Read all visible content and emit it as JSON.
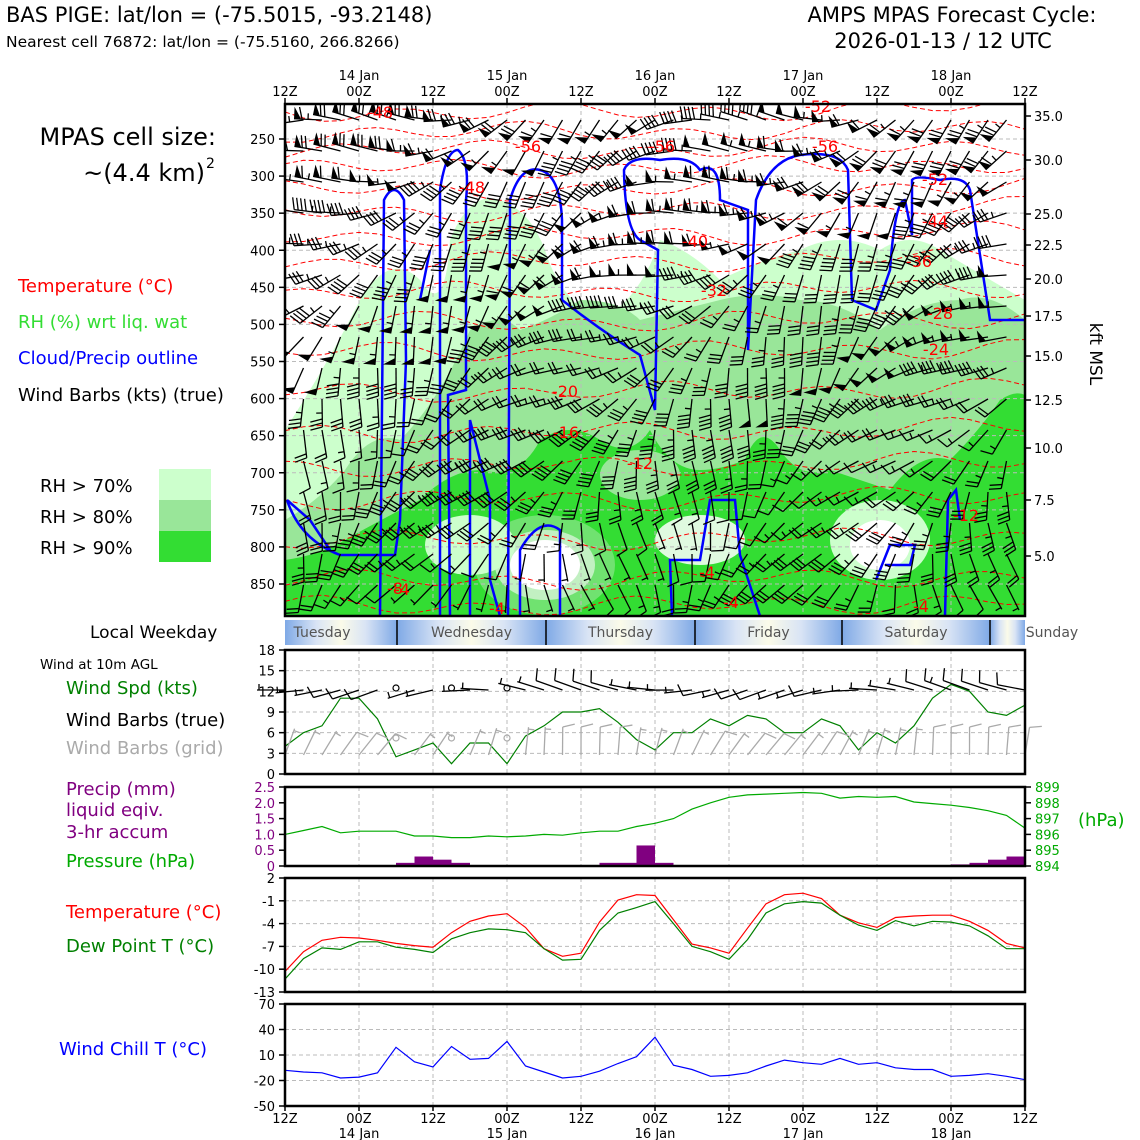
{
  "header": {
    "site_line": "BAS PIGE: lat/lon = (-75.5015, -93.2148)",
    "cell_line": "Nearest cell 76872: lat/lon = (-75.5160, 266.8266)",
    "cycle_line1": "AMPS MPAS Forecast Cycle:",
    "cycle_line2": "2026-01-13 / 12 UTC"
  },
  "colors": {
    "temperature": "#ff0000",
    "rh_legend": "#33dd33",
    "cloud_outline": "#0000ff",
    "wind": "#000000",
    "wind_grid": "#aaaaaa",
    "precip": "#800080",
    "pressure": "#00aa00",
    "dewpoint": "#008000",
    "windchill": "#0000ff",
    "rh70": "#ccffcc",
    "rh80": "#99e699",
    "rh90": "#33dd33"
  },
  "time_axis": {
    "hour_labels": [
      "12Z",
      "00Z",
      "12Z",
      "00Z",
      "12Z",
      "00Z",
      "12Z",
      "00Z",
      "12Z",
      "00Z",
      "12Z"
    ],
    "date_labels": [
      "14 Jan",
      "15 Jan",
      "16 Jan",
      "17 Jan",
      "18 Jan"
    ]
  },
  "upper_panel": {
    "cell_size_label": "MPAS cell size:",
    "cell_size_value": "~(4.4 km)",
    "cell_size_exp": "2",
    "legend": {
      "temperature": "Temperature (°C)",
      "rh": "RH (%) wrt liq. wat",
      "cloud": "Cloud/Precip outline",
      "wind": "Wind Barbs (kts) (true)"
    },
    "rh_levels": [
      "RH > 70%",
      "RH > 80%",
      "RH > 90%"
    ],
    "pressure_ticks": [
      "250",
      "300",
      "350",
      "400",
      "450",
      "500",
      "550",
      "600",
      "650",
      "700",
      "750",
      "800",
      "850"
    ],
    "height_ticks": [
      "35.0",
      "30.0",
      "25.0",
      "22.5",
      "20.0",
      "17.5",
      "15.0",
      "12.5",
      "10.0",
      "7.5",
      "5.0"
    ],
    "height_axis_label": "kft MSL",
    "temp_contour_labels": [
      "-48",
      "-52",
      "-56",
      "-56",
      "-56",
      "-52",
      "-48",
      "-44",
      "-40",
      "-36",
      "-32",
      "-28",
      "-24",
      "-20",
      "-16",
      "-12",
      "-12",
      "-8",
      "-8",
      "-4",
      "-4",
      "-4",
      "-4",
      "-4"
    ]
  },
  "weekday_bar": {
    "label": "Local Weekday",
    "days": [
      "Tuesday",
      "Wednesday",
      "Thursday",
      "Friday",
      "Saturday",
      "Sunday"
    ]
  },
  "wind_panel": {
    "title": "Wind at 10m AGL",
    "legend": {
      "speed": "Wind Spd (kts)",
      "barbs_true": "Wind Barbs (true)",
      "barbs_grid": "Wind Barbs (grid)"
    },
    "y_ticks": [
      "0",
      "3",
      "6",
      "9",
      "12",
      "15",
      "18"
    ]
  },
  "precip_panel": {
    "legend": {
      "precip1": "Precip (mm)",
      "precip2": "liquid eqiv.",
      "precip3": "3-hr accum",
      "pressure": "Pressure (hPa)"
    },
    "left_ticks": [
      "0",
      "0.5",
      "1.0",
      "1.5",
      "2.0",
      "2.5"
    ],
    "right_ticks": [
      "894",
      "895",
      "896",
      "897",
      "898",
      "899"
    ],
    "right_unit": "(hPa)"
  },
  "temp_panel": {
    "legend": {
      "temp": "Temperature (°C)",
      "dew": "Dew Point T (°C)"
    },
    "y_ticks": [
      "-13",
      "-10",
      "-7",
      "-4",
      "-1",
      "2"
    ]
  },
  "chill_panel": {
    "legend": "Wind Chill T (°C)",
    "y_ticks": [
      "-50",
      "-20",
      "10",
      "40",
      "70"
    ]
  },
  "chart_data": [
    {
      "type": "line",
      "title": "Wind at 10m AGL",
      "x": [
        "13/12Z",
        "13/15Z",
        "13/18Z",
        "13/21Z",
        "14/00Z",
        "14/03Z",
        "14/06Z",
        "14/09Z",
        "14/12Z",
        "14/15Z",
        "14/18Z",
        "14/21Z",
        "15/00Z",
        "15/03Z",
        "15/06Z",
        "15/09Z",
        "15/12Z",
        "15/15Z",
        "15/18Z",
        "15/21Z",
        "16/00Z",
        "16/03Z",
        "16/06Z",
        "16/09Z",
        "16/12Z",
        "16/15Z",
        "16/18Z",
        "16/21Z",
        "17/00Z",
        "17/03Z",
        "17/06Z",
        "17/09Z",
        "17/12Z",
        "17/15Z",
        "17/18Z",
        "17/21Z",
        "18/00Z",
        "18/03Z",
        "18/06Z",
        "18/09Z",
        "18/12Z"
      ],
      "series": [
        {
          "name": "Wind Spd (kts)",
          "values": [
            4,
            6,
            7,
            11,
            11,
            8,
            2.5,
            3.5,
            4.5,
            1.5,
            4.5,
            4.5,
            1.5,
            5.5,
            7,
            9,
            9,
            9.5,
            7.5,
            5,
            3.5,
            6,
            6,
            8,
            7,
            8.5,
            8,
            6,
            6,
            8,
            7,
            3.5,
            6,
            4.5,
            7,
            11,
            13,
            12,
            9,
            8.5,
            10
          ]
        }
      ],
      "ylim": [
        0,
        18
      ]
    },
    {
      "type": "bar",
      "title": "Precip (mm) liquid eqiv. 3-hr accum",
      "x": [
        "13/12Z",
        "13/15Z",
        "13/18Z",
        "13/21Z",
        "14/00Z",
        "14/03Z",
        "14/06Z",
        "14/09Z",
        "14/12Z",
        "14/15Z",
        "14/18Z",
        "14/21Z",
        "15/00Z",
        "15/03Z",
        "15/06Z",
        "15/09Z",
        "15/12Z",
        "15/15Z",
        "15/18Z",
        "15/21Z",
        "16/00Z",
        "16/03Z",
        "16/06Z",
        "16/09Z",
        "16/12Z",
        "16/15Z",
        "16/18Z",
        "16/21Z",
        "17/00Z",
        "17/03Z",
        "17/06Z",
        "17/09Z",
        "17/12Z",
        "17/15Z",
        "17/18Z",
        "17/21Z",
        "18/00Z",
        "18/03Z",
        "18/06Z",
        "18/09Z",
        "18/12Z"
      ],
      "values": [
        0,
        0,
        0,
        0,
        0,
        0,
        0.03,
        0.1,
        0.3,
        0.2,
        0.1,
        0,
        0,
        0,
        0,
        0,
        0,
        0,
        0.1,
        0.1,
        0.65,
        0.1,
        0,
        0,
        0,
        0,
        0,
        0,
        0,
        0,
        0,
        0,
        0,
        0,
        0,
        0,
        0,
        0.05,
        0.1,
        0.2,
        0.3
      ],
      "ylim": [
        0,
        2.5
      ]
    },
    {
      "type": "line",
      "title": "Pressure (hPa)",
      "x": [
        "13/12Z",
        "13/15Z",
        "13/18Z",
        "13/21Z",
        "14/00Z",
        "14/03Z",
        "14/06Z",
        "14/09Z",
        "14/12Z",
        "14/15Z",
        "14/18Z",
        "14/21Z",
        "15/00Z",
        "15/03Z",
        "15/06Z",
        "15/09Z",
        "15/12Z",
        "15/15Z",
        "15/18Z",
        "15/21Z",
        "16/00Z",
        "16/03Z",
        "16/06Z",
        "16/09Z",
        "16/12Z",
        "16/15Z",
        "16/18Z",
        "16/21Z",
        "17/00Z",
        "17/03Z",
        "17/06Z",
        "17/09Z",
        "17/12Z",
        "17/15Z",
        "17/18Z",
        "17/21Z",
        "18/00Z",
        "18/03Z",
        "18/06Z",
        "18/09Z",
        "18/12Z"
      ],
      "series": [
        {
          "name": "Pressure (hPa)",
          "values": [
            896.0,
            896.25,
            896.5,
            896.1,
            896.2,
            896.2,
            896.2,
            895.9,
            895.9,
            895.8,
            895.8,
            895.9,
            895.85,
            895.9,
            896.0,
            895.95,
            896.1,
            896.2,
            896.2,
            896.5,
            896.7,
            897.0,
            897.6,
            898.0,
            898.35,
            898.5,
            898.55,
            898.6,
            898.65,
            898.6,
            898.3,
            898.4,
            898.35,
            898.4,
            898.05,
            897.95,
            897.85,
            897.7,
            897.5,
            897.2,
            896.4
          ]
        }
      ],
      "ylim": [
        894,
        899
      ]
    },
    {
      "type": "line",
      "title": "Temperature and Dew Point",
      "x": [
        "13/12Z",
        "13/15Z",
        "13/18Z",
        "13/21Z",
        "14/00Z",
        "14/03Z",
        "14/06Z",
        "14/09Z",
        "14/12Z",
        "14/15Z",
        "14/18Z",
        "14/21Z",
        "15/00Z",
        "15/03Z",
        "15/06Z",
        "15/09Z",
        "15/12Z",
        "15/15Z",
        "15/18Z",
        "15/21Z",
        "16/00Z",
        "16/03Z",
        "16/06Z",
        "16/09Z",
        "16/12Z",
        "16/15Z",
        "16/18Z",
        "16/21Z",
        "17/00Z",
        "17/03Z",
        "17/06Z",
        "17/09Z",
        "17/12Z",
        "17/15Z",
        "17/18Z",
        "17/21Z",
        "18/00Z",
        "18/03Z",
        "18/06Z",
        "18/09Z",
        "18/12Z"
      ],
      "series": [
        {
          "name": "Temperature (°C)",
          "values": [
            -10.3,
            -7.7,
            -6.2,
            -5.8,
            -5.9,
            -6.2,
            -6.6,
            -6.9,
            -7.1,
            -5.2,
            -3.7,
            -3.0,
            -2.7,
            -4.5,
            -7.3,
            -8.3,
            -7.9,
            -3.8,
            -0.9,
            -0.2,
            -0.3,
            -3.5,
            -6.7,
            -7.2,
            -7.9,
            -4.6,
            -1.4,
            -0.2,
            0.0,
            -0.7,
            -2.9,
            -3.9,
            -4.5,
            -3.2,
            -3.0,
            -2.9,
            -2.9,
            -3.7,
            -4.9,
            -6.6,
            -7.2
          ]
        },
        {
          "name": "Dew Point T (°C)",
          "values": [
            -11.3,
            -8.6,
            -7.2,
            -7.4,
            -6.4,
            -6.4,
            -7.1,
            -7.4,
            -7.8,
            -6.0,
            -5.2,
            -4.7,
            -4.8,
            -5.2,
            -7.3,
            -8.8,
            -8.7,
            -4.9,
            -2.6,
            -1.9,
            -1.1,
            -4.0,
            -7.0,
            -7.7,
            -8.7,
            -6.1,
            -2.6,
            -1.4,
            -1.1,
            -1.3,
            -2.9,
            -4.2,
            -4.9,
            -3.6,
            -4.3,
            -3.7,
            -3.8,
            -4.3,
            -5.6,
            -7.3,
            -7.3
          ]
        }
      ],
      "ylim": [
        -13,
        2
      ]
    },
    {
      "type": "line",
      "title": "Wind Chill T (°C)",
      "x": [
        "13/12Z",
        "13/15Z",
        "13/18Z",
        "13/21Z",
        "14/00Z",
        "14/03Z",
        "14/06Z",
        "14/09Z",
        "14/12Z",
        "14/15Z",
        "14/18Z",
        "14/21Z",
        "15/00Z",
        "15/03Z",
        "15/06Z",
        "15/09Z",
        "15/12Z",
        "15/15Z",
        "15/18Z",
        "15/21Z",
        "16/00Z",
        "16/03Z",
        "16/06Z",
        "16/09Z",
        "16/12Z",
        "16/15Z",
        "16/18Z",
        "16/21Z",
        "17/00Z",
        "17/03Z",
        "17/06Z",
        "17/09Z",
        "17/12Z",
        "17/15Z",
        "17/18Z",
        "17/21Z",
        "18/00Z",
        "18/03Z",
        "18/06Z",
        "18/09Z",
        "18/12Z"
      ],
      "series": [
        {
          "name": "Wind Chill T (°C)",
          "values": [
            -8,
            -10,
            -11,
            -17,
            -16,
            -11,
            19,
            2,
            -4,
            20,
            5,
            6,
            26,
            -3,
            -10,
            -17,
            -15,
            -9,
            0,
            8,
            31,
            -2,
            -7,
            -15,
            -14,
            -11,
            -3,
            4,
            1,
            -1,
            6,
            -1,
            1,
            -5,
            -7,
            -7,
            -15,
            -14,
            -12,
            -15,
            -19
          ]
        }
      ],
      "ylim": [
        -50,
        70
      ]
    }
  ]
}
